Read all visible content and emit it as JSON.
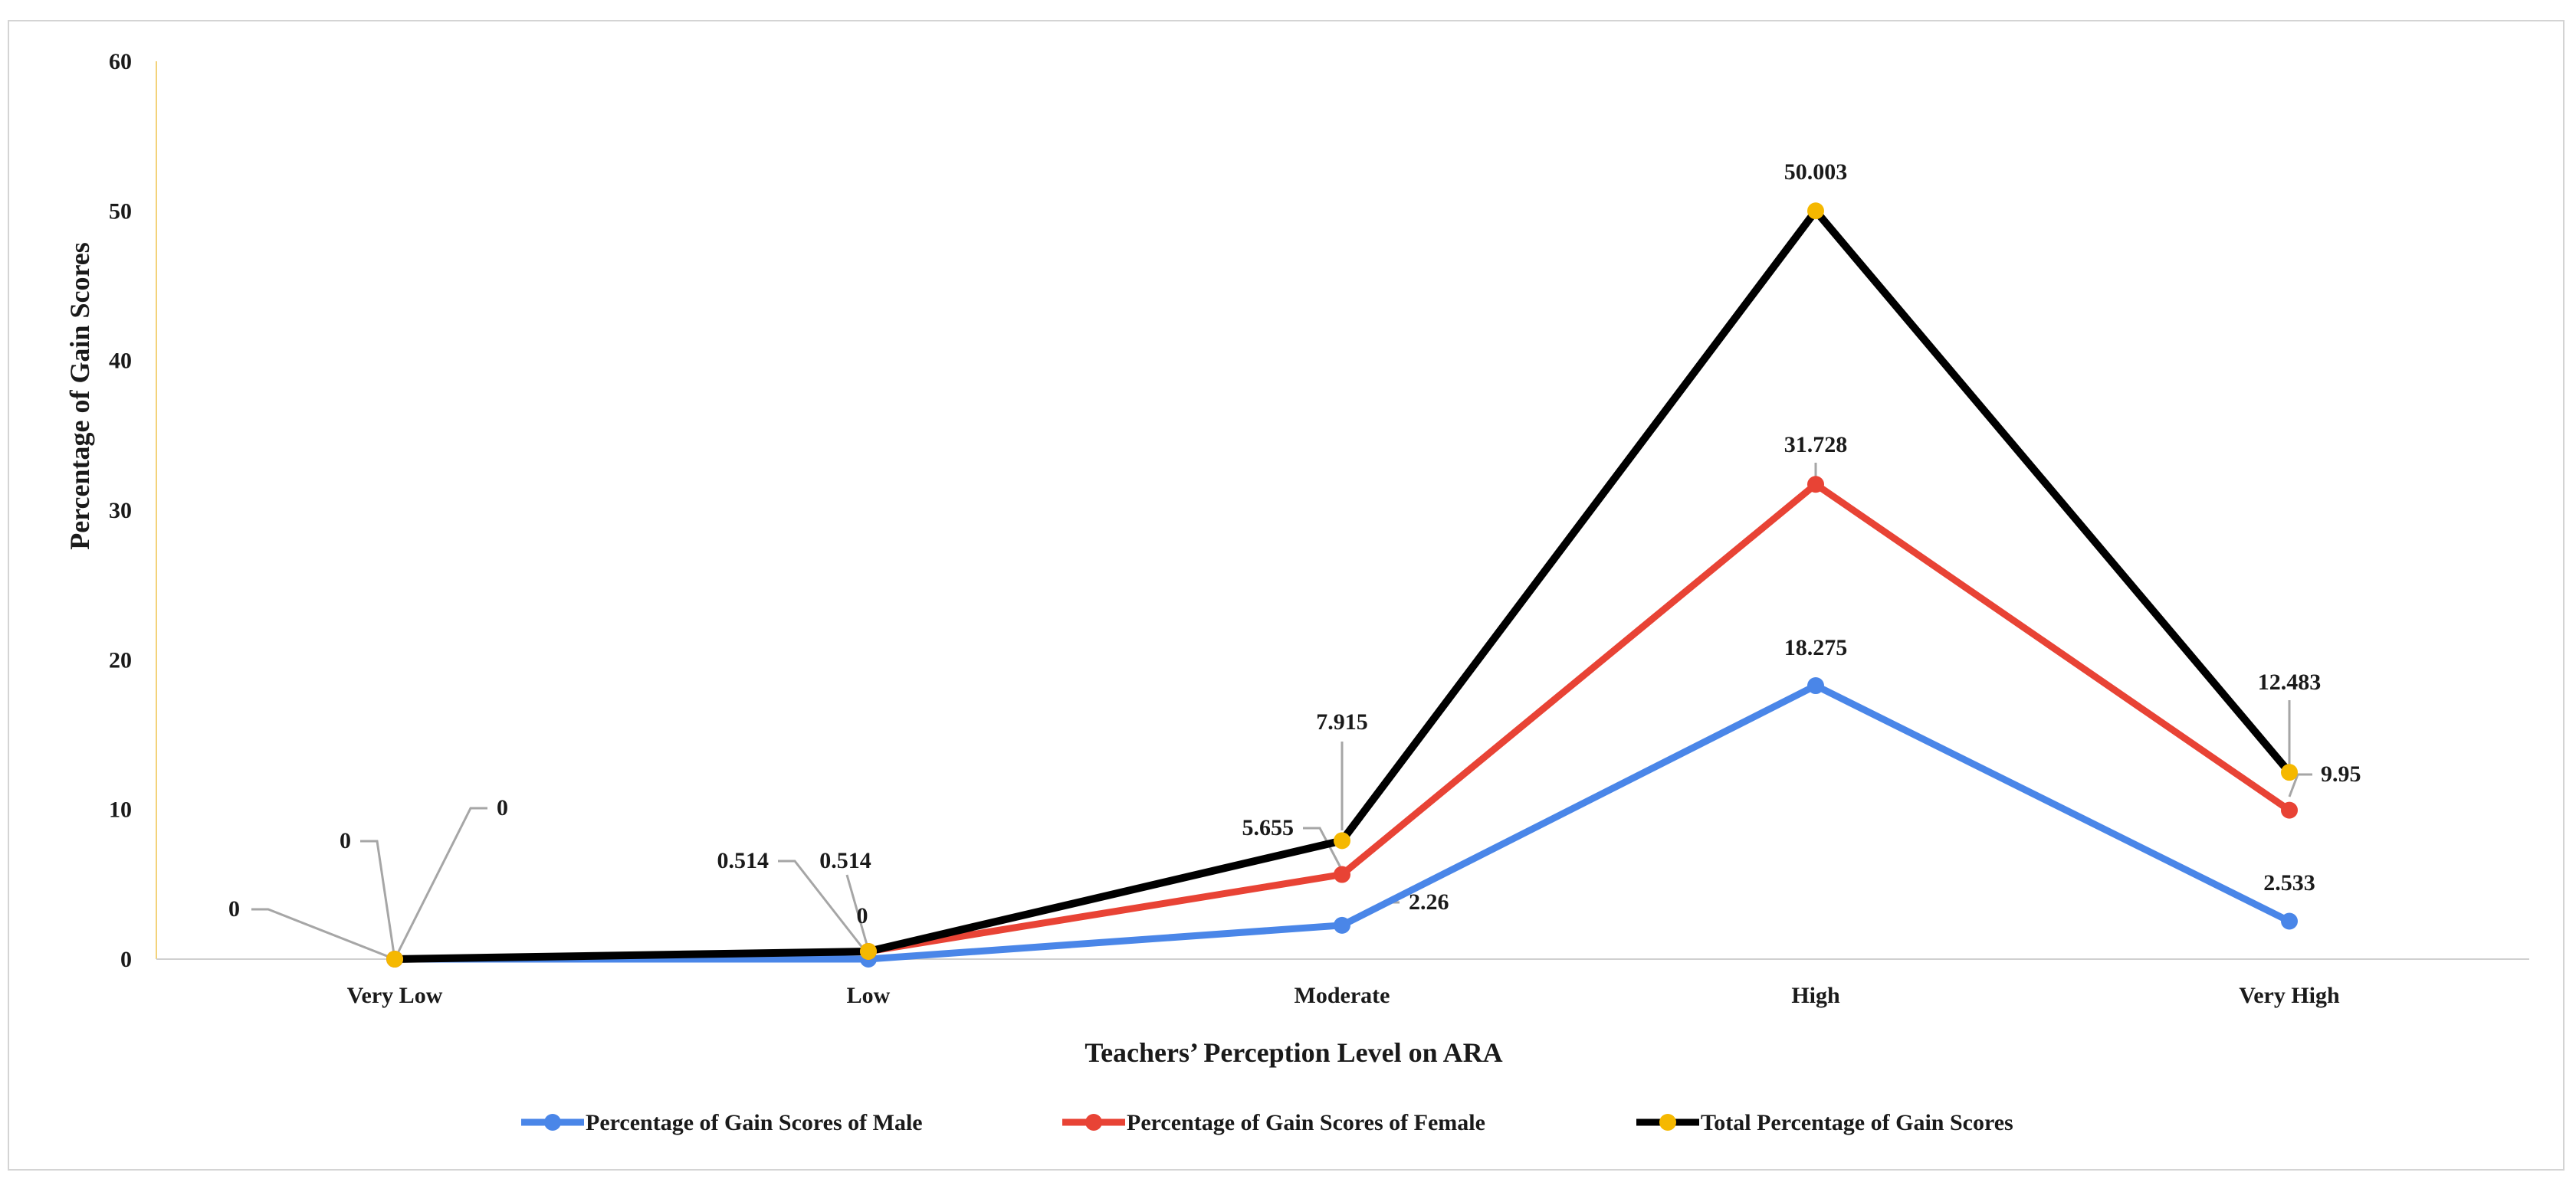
{
  "chart_data": {
    "type": "line",
    "title": "",
    "categories": [
      "Very Low",
      "Low",
      "Moderate",
      "High",
      "Very High"
    ],
    "xlabel": "Teachers’ Perception Level on ARA",
    "ylabel": "Percentage of Gain Scores",
    "ylim": [
      0,
      60
    ],
    "yticks": [
      "0",
      "10",
      "20",
      "30",
      "40",
      "50",
      "60"
    ],
    "grid": false,
    "legend_position": "bottom",
    "series": [
      {
        "name": "Percentage of Gain Scores of Male",
        "color": "#4a86e8",
        "values": [
          0,
          0,
          2.26,
          18.275,
          2.533
        ],
        "labels": [
          "0",
          "0",
          "2.26",
          "18.275",
          "2.533"
        ]
      },
      {
        "name": "Percentage of Gain Scores of Female",
        "color": "#e84335",
        "values": [
          0,
          0.514,
          5.655,
          31.728,
          9.95
        ],
        "labels": [
          "0",
          "0.514",
          "5.655",
          "31.728",
          "9.95"
        ]
      },
      {
        "name": "Total Percentage of Gain Scores",
        "color": "#000000",
        "marker_color": "#f5b800",
        "values": [
          0,
          0.514,
          7.915,
          50.003,
          12.483
        ],
        "labels": [
          "0",
          "0.514",
          "7.915",
          "50.003",
          "12.483"
        ]
      }
    ]
  }
}
